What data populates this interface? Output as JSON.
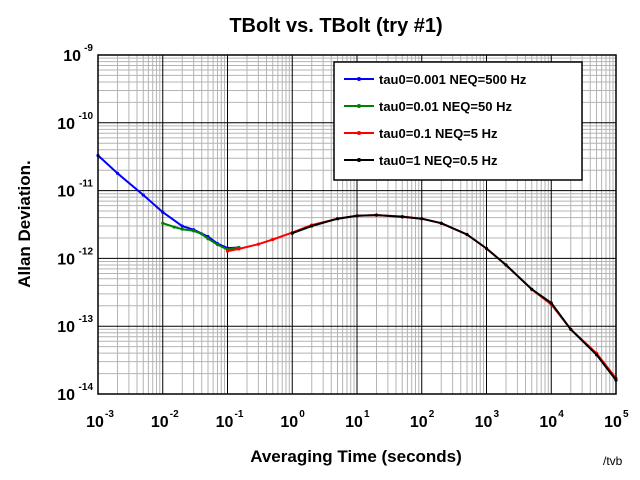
{
  "chart_data": {
    "type": "line",
    "title": "TBolt vs. TBolt (try #1)",
    "xlabel": "Averaging Time (seconds)",
    "ylabel": "Allan Deviation.",
    "x_scale": "log",
    "y_scale": "log",
    "xlim": [
      0.001,
      100000
    ],
    "ylim": [
      1e-14,
      1e-09
    ],
    "grid": true,
    "legend_position": "top-right",
    "footnote": "/tvb",
    "x_ticks": [
      {
        "base": "10",
        "exp": "-3",
        "value": 0.001
      },
      {
        "base": "10",
        "exp": "-2",
        "value": 0.01
      },
      {
        "base": "10",
        "exp": "-1",
        "value": 0.1
      },
      {
        "base": "10",
        "exp": "0",
        "value": 1
      },
      {
        "base": "10",
        "exp": "1",
        "value": 10
      },
      {
        "base": "10",
        "exp": "2",
        "value": 100
      },
      {
        "base": "10",
        "exp": "3",
        "value": 1000
      },
      {
        "base": "10",
        "exp": "4",
        "value": 10000
      },
      {
        "base": "10",
        "exp": "5",
        "value": 100000
      }
    ],
    "y_ticks": [
      {
        "base": "10",
        "exp": "-9",
        "value": 1e-09
      },
      {
        "base": "10",
        "exp": "-10",
        "value": 1e-10
      },
      {
        "base": "10",
        "exp": "-11",
        "value": 1e-11
      },
      {
        "base": "10",
        "exp": "-12",
        "value": 1e-12
      },
      {
        "base": "10",
        "exp": "-13",
        "value": 1e-13
      },
      {
        "base": "10",
        "exp": "-14",
        "value": 1e-14
      }
    ],
    "series": [
      {
        "name": "tau0=0.001 NEQ=500 Hz",
        "color": "#0000ff",
        "x": [
          0.001,
          0.002,
          0.005,
          0.01,
          0.02,
          0.03,
          0.05,
          0.07,
          0.1,
          0.15
        ],
        "y": [
          3.3e-11,
          1.8e-11,
          8.6e-12,
          4.8e-12,
          3e-12,
          2.65e-12,
          2.1e-12,
          1.65e-12,
          1.42e-12,
          1.45e-12
        ]
      },
      {
        "name": "tau0=0.01 NEQ=50 Hz",
        "color": "#008000",
        "x": [
          0.01,
          0.015,
          0.02,
          0.03,
          0.04,
          0.05,
          0.07,
          0.1,
          0.15
        ],
        "y": [
          3.3e-12,
          2.9e-12,
          2.7e-12,
          2.55e-12,
          2.3e-12,
          1.95e-12,
          1.6e-12,
          1.35e-12,
          1.45e-12
        ]
      },
      {
        "name": "tau0=0.1 NEQ=5 Hz",
        "color": "#ff0000",
        "x": [
          0.1,
          0.15,
          0.3,
          0.5,
          1,
          2,
          5,
          10,
          20,
          50,
          100,
          200,
          500,
          1000,
          2000,
          5000,
          10000,
          20000,
          50000,
          100000
        ],
        "y": [
          1.28e-12,
          1.38e-12,
          1.62e-12,
          1.9e-12,
          2.4e-12,
          3.1e-12,
          3.85e-12,
          4.25e-12,
          4.35e-12,
          4.15e-12,
          3.85e-12,
          3.3e-12,
          2.25e-12,
          1.4e-12,
          8e-13,
          3.5e-13,
          2.1e-13,
          9e-14,
          4e-14,
          1.7e-14
        ]
      },
      {
        "name": "tau0=1 NEQ=0.5 Hz",
        "color": "#000000",
        "x": [
          1,
          2,
          5,
          10,
          20,
          50,
          100,
          200,
          500,
          1000,
          2000,
          5000,
          10000,
          20000,
          50000,
          100000
        ],
        "y": [
          2.35e-12,
          3e-12,
          3.85e-12,
          4.25e-12,
          4.35e-12,
          4.1e-12,
          3.85e-12,
          3.3e-12,
          2.25e-12,
          1.4e-12,
          8e-13,
          3.5e-13,
          2.2e-13,
          9e-14,
          3.8e-14,
          1.6e-14
        ]
      }
    ]
  }
}
